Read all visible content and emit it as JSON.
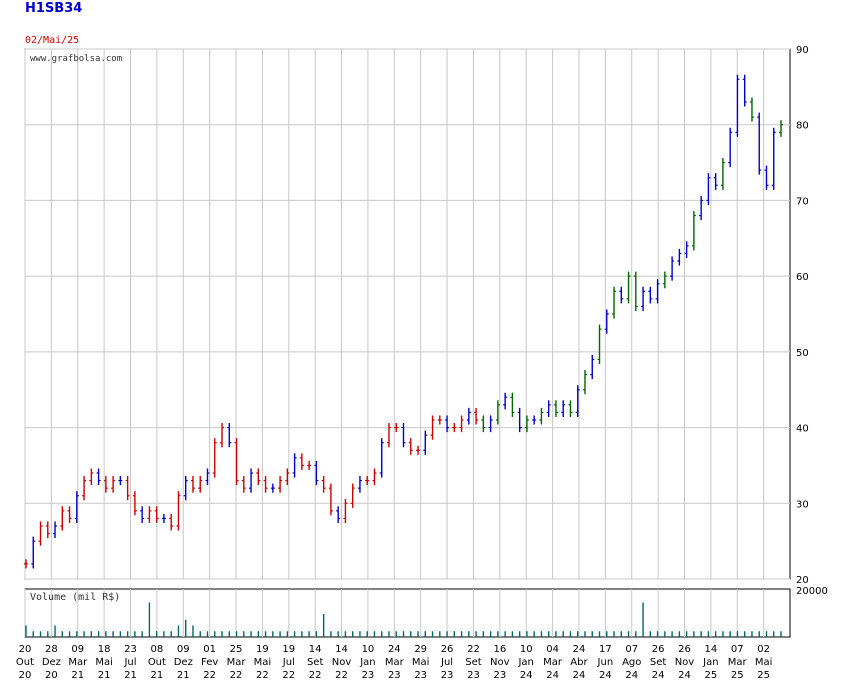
{
  "header": {
    "ticker": "H1SB34",
    "date": "02/Mai/25"
  },
  "chart_data": {
    "type": "line",
    "source_text": "www.grafbolsa.com",
    "volume_label": "Volume (mil R$)",
    "volume_ymax_label": "20000",
    "ylim": [
      20,
      90
    ],
    "y_ticks": [
      90,
      80,
      70,
      60,
      50,
      40,
      30,
      20
    ],
    "grid": true,
    "x_ticks": [
      [
        "20",
        "Out",
        "20"
      ],
      [
        "28",
        "Dez",
        "20"
      ],
      [
        "09",
        "Mar",
        "21"
      ],
      [
        "18",
        "Mai",
        "21"
      ],
      [
        "23",
        "Jul",
        "21"
      ],
      [
        "08",
        "Out",
        "21"
      ],
      [
        "09",
        "Dez",
        "21"
      ],
      [
        "01",
        "Fev",
        "22"
      ],
      [
        "25",
        "Mar",
        "22"
      ],
      [
        "19",
        "Mai",
        "22"
      ],
      [
        "19",
        "Jul",
        "22"
      ],
      [
        "14",
        "Set",
        "22"
      ],
      [
        "14",
        "Nov",
        "22"
      ],
      [
        "10",
        "Jan",
        "23"
      ],
      [
        "24",
        "Mar",
        "23"
      ],
      [
        "29",
        "Mai",
        "23"
      ],
      [
        "26",
        "Jul",
        "23"
      ],
      [
        "22",
        "Set",
        "23"
      ],
      [
        "16",
        "Nov",
        "23"
      ],
      [
        "10",
        "Jan",
        "24"
      ],
      [
        "04",
        "Mar",
        "24"
      ],
      [
        "24",
        "Abr",
        "24"
      ],
      [
        "17",
        "Jun",
        "24"
      ],
      [
        "07",
        "Ago",
        "24"
      ],
      [
        "26",
        "Set",
        "24"
      ],
      [
        "26",
        "Nov",
        "24"
      ],
      [
        "14",
        "Jan",
        "25"
      ],
      [
        "07",
        "Mar",
        "25"
      ],
      [
        "02",
        "Mai",
        "25"
      ]
    ],
    "series": [
      {
        "values": [
          22,
          25,
          27,
          26,
          27,
          29,
          28,
          31,
          33,
          34,
          33,
          32,
          33,
          33,
          31,
          29,
          28,
          29,
          28,
          28,
          27,
          31,
          33,
          32,
          33,
          34,
          38,
          40,
          38,
          33,
          32,
          34,
          33,
          32,
          32,
          33,
          34,
          36,
          35,
          35,
          33,
          32,
          29,
          28,
          30,
          32,
          33,
          33,
          34,
          38,
          40,
          40,
          38,
          37,
          37,
          39,
          41,
          41,
          40,
          40,
          41,
          42,
          41,
          40,
          41,
          43,
          44,
          42,
          40,
          41,
          41,
          42,
          43,
          42,
          43,
          42,
          45,
          47,
          49,
          53,
          55,
          58,
          57,
          60,
          56,
          58,
          57,
          59,
          60,
          62,
          63,
          64,
          68,
          70,
          73,
          72,
          75,
          79,
          86,
          83,
          81,
          74,
          72,
          79,
          80
        ]
      }
    ],
    "volume": {
      "values": [
        2,
        1,
        1,
        1,
        2,
        1,
        1,
        1,
        1,
        1,
        1,
        1,
        1,
        1,
        1,
        1,
        1,
        6,
        1,
        1,
        1,
        2,
        3,
        2,
        1,
        1,
        1,
        1,
        1,
        1,
        1,
        1,
        1,
        1,
        1,
        1,
        1,
        1,
        1,
        1,
        1,
        4,
        1,
        1,
        1,
        1,
        1,
        1,
        1,
        1,
        1,
        1,
        1,
        1,
        1,
        1,
        1,
        1,
        1,
        1,
        1,
        1,
        1,
        1,
        1,
        1,
        1,
        1,
        1,
        1,
        1,
        1,
        1,
        1,
        1,
        1,
        1,
        1,
        1,
        1,
        1,
        1,
        1,
        1,
        1,
        6,
        1,
        1,
        1,
        1,
        1,
        1,
        1,
        1,
        1,
        1,
        1,
        1,
        1,
        1,
        1,
        1,
        1,
        1,
        1
      ]
    }
  }
}
